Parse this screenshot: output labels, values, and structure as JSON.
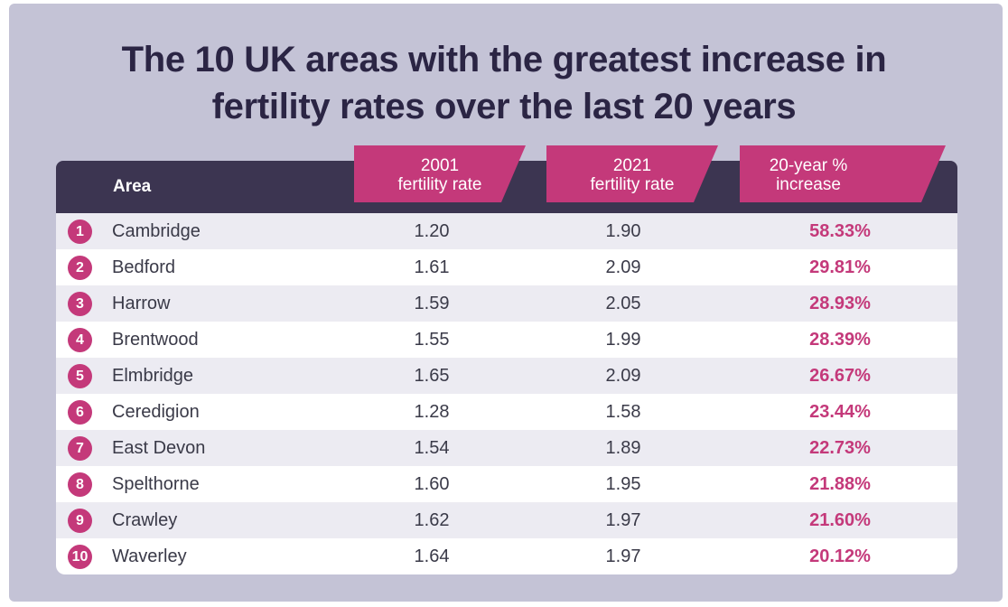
{
  "title": "The 10 UK areas with the greatest increase in\nfertility rates over the last 20 years",
  "colors": {
    "accent": "#c4397a",
    "header": "#3c3551",
    "background": "#c4c3d6",
    "row_alt": "#ecebf2"
  },
  "chart_data": {
    "type": "table",
    "title": "The 10 UK areas with the greatest increase in fertility rates over the last 20 years",
    "columns": [
      "Area",
      "2001\nfertility rate",
      "2021\nfertility rate",
      "20-year %\nincrease"
    ],
    "rows": [
      {
        "rank": "1",
        "area": "Cambridge",
        "rate_2001": "1.20",
        "rate_2021": "1.90",
        "increase": "58.33%"
      },
      {
        "rank": "2",
        "area": "Bedford",
        "rate_2001": "1.61",
        "rate_2021": "2.09",
        "increase": "29.81%"
      },
      {
        "rank": "3",
        "area": "Harrow",
        "rate_2001": "1.59",
        "rate_2021": "2.05",
        "increase": "28.93%"
      },
      {
        "rank": "4",
        "area": "Brentwood",
        "rate_2001": "1.55",
        "rate_2021": "1.99",
        "increase": "28.39%"
      },
      {
        "rank": "5",
        "area": "Elmbridge",
        "rate_2001": "1.65",
        "rate_2021": "2.09",
        "increase": "26.67%"
      },
      {
        "rank": "6",
        "area": "Ceredigion",
        "rate_2001": "1.28",
        "rate_2021": "1.58",
        "increase": "23.44%"
      },
      {
        "rank": "7",
        "area": "East Devon",
        "rate_2001": "1.54",
        "rate_2021": "1.89",
        "increase": "22.73%"
      },
      {
        "rank": "8",
        "area": "Spelthorne",
        "rate_2001": "1.60",
        "rate_2021": "1.95",
        "increase": "21.88%"
      },
      {
        "rank": "9",
        "area": "Crawley",
        "rate_2001": "1.62",
        "rate_2021": "1.97",
        "increase": "21.60%"
      },
      {
        "rank": "10",
        "area": "Waverley",
        "rate_2001": "1.64",
        "rate_2021": "1.97",
        "increase": "20.12%"
      }
    ]
  }
}
